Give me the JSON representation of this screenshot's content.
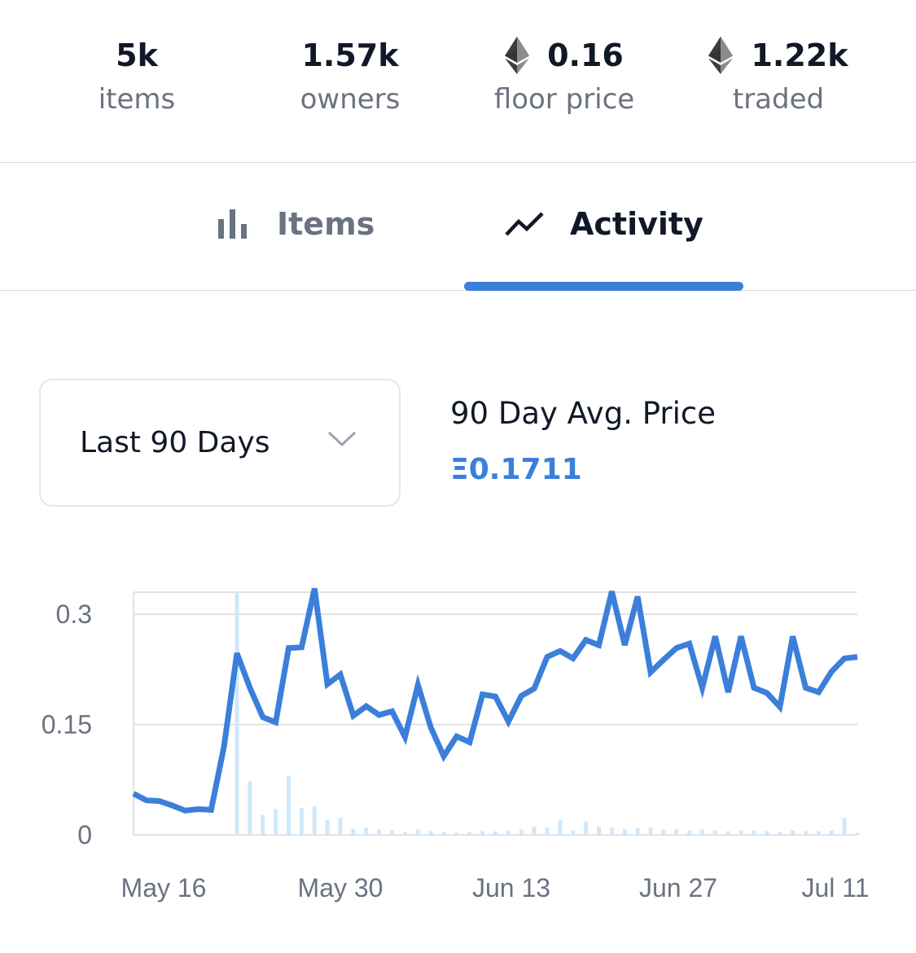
{
  "stats": [
    {
      "value": "5k",
      "label": "items",
      "eth": false
    },
    {
      "value": "1.57k",
      "label": "owners",
      "eth": false
    },
    {
      "value": "0.16",
      "label": "floor price",
      "eth": true
    },
    {
      "value": "1.22k",
      "label": "traded",
      "eth": true
    }
  ],
  "tabs": {
    "items": "Items",
    "activity": "Activity",
    "active": "activity"
  },
  "range_select": {
    "value": "Last 90 Days"
  },
  "avg_price": {
    "title": "90 Day Avg. Price",
    "value": "Ξ0.1711"
  },
  "colors": {
    "accent": "#3b7fdb",
    "volume_bar": "#cfe8fb",
    "muted_text": "#6b7280"
  },
  "chart_data": {
    "type": "line",
    "title": "",
    "xlabel": "",
    "ylabel": "",
    "x_tick_labels": [
      "May 16",
      "May 30",
      "Jun 13",
      "Jun 27",
      "Jul 11"
    ],
    "y_tick_labels": [
      "0.3",
      "0.15",
      "0"
    ],
    "ylim": [
      0,
      0.33
    ],
    "grid": true,
    "series": [
      {
        "type": "line",
        "values": [
          0.056,
          0.047,
          0.046,
          0.04,
          0.033,
          0.035,
          0.034,
          0.12,
          0.247,
          0.2,
          0.16,
          0.153,
          0.254,
          0.255,
          0.335,
          0.205,
          0.218,
          0.162,
          0.175,
          0.163,
          0.168,
          0.133,
          0.204,
          0.146,
          0.107,
          0.134,
          0.126,
          0.191,
          0.188,
          0.154,
          0.189,
          0.199,
          0.242,
          0.25,
          0.24,
          0.265,
          0.258,
          0.331,
          0.258,
          0.324,
          0.221,
          0.238,
          0.254,
          0.26,
          0.2,
          0.27,
          0.194,
          0.27,
          0.2,
          0.193,
          0.174,
          0.27,
          0.2,
          0.194,
          0.222,
          0.24,
          0.242
        ]
      },
      {
        "type": "bar",
        "values": [
          0,
          0,
          0,
          0,
          0,
          0,
          0,
          0,
          0.33,
          0.073,
          0.027,
          0.035,
          0.08,
          0.037,
          0.039,
          0.02,
          0.023,
          0.008,
          0.01,
          0.007,
          0.006,
          0.004,
          0.007,
          0.005,
          0.004,
          0.003,
          0.004,
          0.005,
          0.005,
          0.006,
          0.007,
          0.011,
          0.01,
          0.02,
          0.006,
          0.018,
          0.011,
          0.01,
          0.008,
          0.009,
          0.01,
          0.007,
          0.008,
          0.006,
          0.007,
          0.006,
          0.005,
          0.006,
          0.006,
          0.005,
          0.004,
          0.006,
          0.005,
          0.005,
          0.006,
          0.023,
          0.003
        ]
      }
    ]
  }
}
